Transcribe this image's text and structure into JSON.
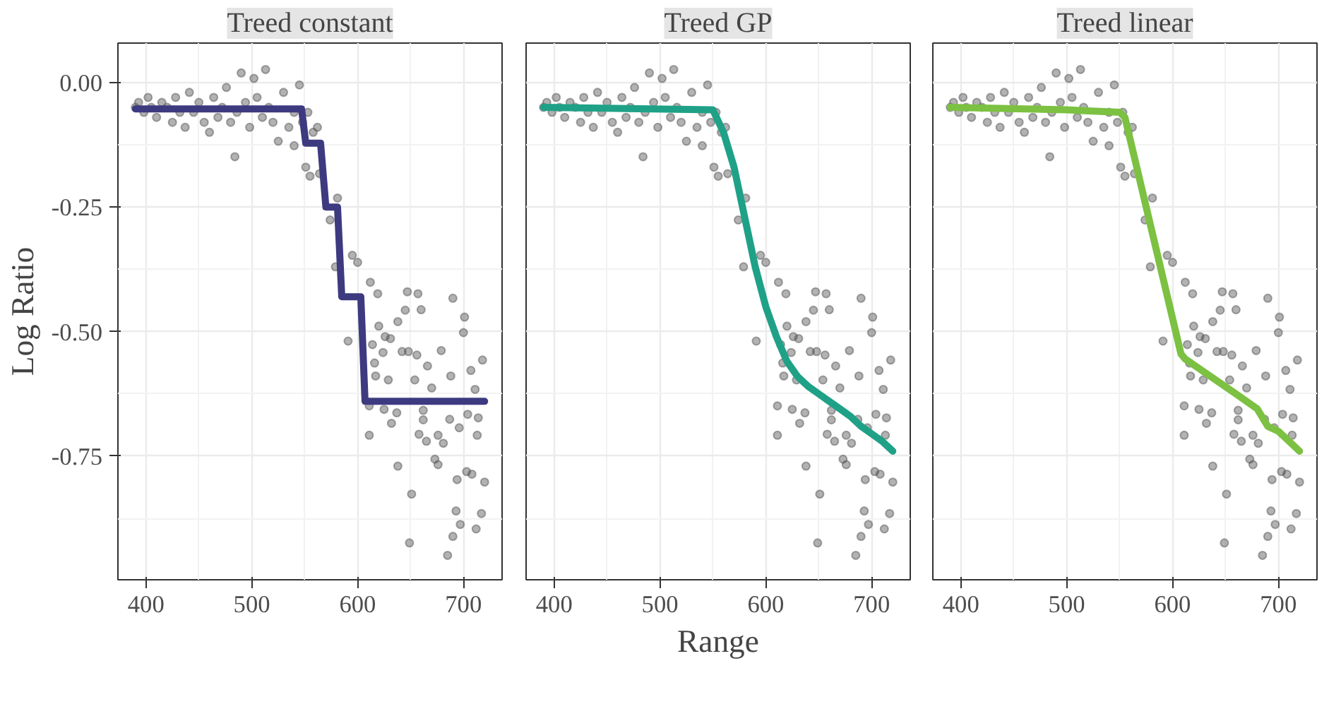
{
  "chart_data": [
    {
      "type": "scatter",
      "title": "Treed constant",
      "ylabel": "Log Ratio",
      "xlim": [
        373.5,
        736.5
      ],
      "ylim": [
        -0.998,
        0.079
      ],
      "xticks": [
        400,
        500,
        600,
        700
      ],
      "yticks": [
        {
          "value": 0,
          "label": "0.00"
        },
        {
          "value": -0.25,
          "label": "-0.25"
        },
        {
          "value": -0.5,
          "label": "-0.50"
        },
        {
          "value": -0.75,
          "label": "-0.75"
        }
      ],
      "grid": true,
      "marker": "circle",
      "series": [
        {
          "color": "#555555",
          "x": [
            390,
            393,
            398,
            402,
            405,
            410,
            415,
            420,
            425,
            428,
            432,
            437,
            441,
            445,
            450,
            455,
            460,
            464,
            468,
            472,
            476,
            480,
            484,
            486,
            490,
            494,
            498,
            502,
            505,
            510,
            513,
            516,
            520,
            525,
            530,
            535,
            540,
            540,
            545,
            548,
            551,
            553,
            555,
            558,
            562,
            564,
            574,
            579,
            581,
            591,
            595,
            600,
            611,
            611,
            612,
            614,
            616,
            617,
            619,
            620,
            624,
            625,
            626,
            629,
            631,
            632,
            637,
            638,
            638,
            642,
            645,
            647,
            648,
            649,
            651,
            654,
            656,
            657,
            658,
            660,
            662,
            662,
            665,
            666,
            670,
            673,
            676,
            676,
            679,
            681,
            685,
            687,
            688,
            690,
            690,
            693,
            694,
            696,
            697,
            700,
            701,
            703,
            704,
            707,
            708,
            711,
            712,
            713,
            714,
            717,
            718,
            720
          ],
          "values": [
            -0.05,
            -0.04,
            -0.06,
            -0.03,
            -0.05,
            -0.07,
            -0.04,
            -0.05,
            -0.08,
            -0.03,
            -0.06,
            -0.09,
            -0.02,
            -0.06,
            -0.04,
            -0.08,
            -0.1,
            -0.03,
            -0.07,
            -0.05,
            -0.01,
            -0.08,
            -0.149,
            -0.06,
            0.019,
            -0.04,
            -0.09,
            0.008,
            -0.03,
            -0.07,
            0.026,
            -0.05,
            -0.08,
            -0.118,
            -0.02,
            -0.09,
            -0.06,
            -0.127,
            -0.005,
            -0.08,
            -0.17,
            -0.06,
            -0.188,
            -0.1,
            -0.09,
            -0.183,
            -0.276,
            -0.37,
            -0.232,
            -0.519,
            -0.347,
            -0.361,
            -0.649,
            -0.708,
            -0.401,
            -0.526,
            -0.563,
            -0.589,
            -0.424,
            -0.489,
            -0.542,
            -0.656,
            -0.51,
            -0.597,
            -0.514,
            -0.684,
            -0.663,
            -0.48,
            -0.77,
            -0.54,
            -0.457,
            -0.42,
            -0.54,
            -0.924,
            -0.826,
            -0.597,
            -0.547,
            -0.424,
            -0.706,
            -0.456,
            -0.658,
            -0.677,
            -0.72,
            -0.569,
            -0.613,
            -0.756,
            -0.767,
            -0.708,
            -0.538,
            -0.724,
            -0.949,
            -0.676,
            -0.589,
            -0.433,
            -0.911,
            -0.86,
            -0.797,
            -0.693,
            -0.887,
            -0.502,
            -0.471,
            -0.781,
            -0.666,
            -0.578,
            -0.786,
            -0.616,
            -0.896,
            -0.708,
            -0.673,
            -0.865,
            -0.557,
            -0.802
          ]
        },
        {
          "type": "line",
          "marker": "none",
          "color": "#3d3a80",
          "x": [
            390,
            547,
            551,
            565,
            570,
            581,
            585,
            603,
            607,
            720
          ],
          "values": [
            -0.053,
            -0.053,
            -0.122,
            -0.122,
            -0.25,
            -0.25,
            -0.43,
            -0.43,
            -0.64,
            -0.64
          ]
        }
      ]
    },
    {
      "type": "scatter",
      "title": "Treed GP",
      "xlabel": "Range",
      "xlim": [
        373.5,
        736.5
      ],
      "ylim": [
        -0.998,
        0.079
      ],
      "xticks": [
        400,
        500,
        600,
        700
      ],
      "tick_labels": "x",
      "grid": true,
      "marker": "circle",
      "series": [
        {
          "color": "#555555",
          "x": [
            390,
            393,
            398,
            402,
            405,
            410,
            415,
            420,
            425,
            428,
            432,
            437,
            441,
            445,
            450,
            455,
            460,
            464,
            468,
            472,
            476,
            480,
            484,
            486,
            490,
            494,
            498,
            502,
            505,
            510,
            513,
            516,
            520,
            525,
            530,
            535,
            540,
            540,
            545,
            548,
            551,
            553,
            555,
            558,
            562,
            564,
            574,
            579,
            581,
            591,
            595,
            600,
            611,
            611,
            612,
            614,
            616,
            617,
            619,
            620,
            624,
            625,
            626,
            629,
            631,
            632,
            637,
            638,
            638,
            642,
            645,
            647,
            648,
            649,
            651,
            654,
            656,
            657,
            658,
            660,
            662,
            662,
            665,
            666,
            670,
            673,
            676,
            676,
            679,
            681,
            685,
            687,
            688,
            690,
            690,
            693,
            694,
            696,
            697,
            700,
            701,
            703,
            704,
            707,
            708,
            711,
            712,
            713,
            714,
            717,
            718,
            720
          ],
          "values": [
            -0.05,
            -0.04,
            -0.06,
            -0.03,
            -0.05,
            -0.07,
            -0.04,
            -0.05,
            -0.08,
            -0.03,
            -0.06,
            -0.09,
            -0.02,
            -0.06,
            -0.04,
            -0.08,
            -0.1,
            -0.03,
            -0.07,
            -0.05,
            -0.01,
            -0.08,
            -0.149,
            -0.06,
            0.019,
            -0.04,
            -0.09,
            0.008,
            -0.03,
            -0.07,
            0.026,
            -0.05,
            -0.08,
            -0.118,
            -0.02,
            -0.09,
            -0.06,
            -0.127,
            -0.005,
            -0.08,
            -0.17,
            -0.06,
            -0.188,
            -0.1,
            -0.09,
            -0.183,
            -0.276,
            -0.37,
            -0.232,
            -0.519,
            -0.347,
            -0.361,
            -0.649,
            -0.708,
            -0.401,
            -0.526,
            -0.563,
            -0.589,
            -0.424,
            -0.489,
            -0.542,
            -0.656,
            -0.51,
            -0.597,
            -0.514,
            -0.684,
            -0.663,
            -0.48,
            -0.77,
            -0.54,
            -0.457,
            -0.42,
            -0.54,
            -0.924,
            -0.826,
            -0.597,
            -0.547,
            -0.424,
            -0.706,
            -0.456,
            -0.658,
            -0.677,
            -0.72,
            -0.569,
            -0.613,
            -0.756,
            -0.767,
            -0.708,
            -0.538,
            -0.724,
            -0.949,
            -0.676,
            -0.589,
            -0.433,
            -0.911,
            -0.86,
            -0.797,
            -0.693,
            -0.887,
            -0.502,
            -0.471,
            -0.781,
            -0.666,
            -0.578,
            -0.786,
            -0.616,
            -0.896,
            -0.708,
            -0.673,
            -0.865,
            -0.557,
            -0.802
          ]
        },
        {
          "type": "line",
          "marker": "none",
          "color": "#1fa187",
          "x": [
            390,
            550,
            560,
            570,
            580,
            590,
            600,
            610,
            620,
            630,
            640,
            650,
            660,
            670,
            680,
            690,
            700,
            710,
            720
          ],
          "values": [
            -0.05,
            -0.055,
            -0.1,
            -0.17,
            -0.27,
            -0.37,
            -0.45,
            -0.51,
            -0.56,
            -0.59,
            -0.61,
            -0.625,
            -0.64,
            -0.655,
            -0.67,
            -0.69,
            -0.705,
            -0.72,
            -0.74
          ]
        }
      ]
    },
    {
      "type": "scatter",
      "title": "Treed linear",
      "xlim": [
        373.5,
        736.5
      ],
      "ylim": [
        -0.998,
        0.079
      ],
      "xticks": [
        400,
        500,
        600,
        700
      ],
      "tick_labels": "x",
      "grid": true,
      "marker": "circle",
      "series": [
        {
          "color": "#555555",
          "x": [
            390,
            393,
            398,
            402,
            405,
            410,
            415,
            420,
            425,
            428,
            432,
            437,
            441,
            445,
            450,
            455,
            460,
            464,
            468,
            472,
            476,
            480,
            484,
            486,
            490,
            494,
            498,
            502,
            505,
            510,
            513,
            516,
            520,
            525,
            530,
            535,
            540,
            540,
            545,
            548,
            551,
            553,
            555,
            558,
            562,
            564,
            574,
            579,
            581,
            591,
            595,
            600,
            611,
            611,
            612,
            614,
            616,
            617,
            619,
            620,
            624,
            625,
            626,
            629,
            631,
            632,
            637,
            638,
            638,
            642,
            645,
            647,
            648,
            649,
            651,
            654,
            656,
            657,
            658,
            660,
            662,
            662,
            665,
            666,
            670,
            673,
            676,
            676,
            679,
            681,
            685,
            687,
            688,
            690,
            690,
            693,
            694,
            696,
            697,
            700,
            701,
            703,
            704,
            707,
            708,
            711,
            712,
            713,
            714,
            717,
            718,
            720
          ],
          "values": [
            -0.05,
            -0.04,
            -0.06,
            -0.03,
            -0.05,
            -0.07,
            -0.04,
            -0.05,
            -0.08,
            -0.03,
            -0.06,
            -0.09,
            -0.02,
            -0.06,
            -0.04,
            -0.08,
            -0.1,
            -0.03,
            -0.07,
            -0.05,
            -0.01,
            -0.08,
            -0.149,
            -0.06,
            0.019,
            -0.04,
            -0.09,
            0.008,
            -0.03,
            -0.07,
            0.026,
            -0.05,
            -0.08,
            -0.118,
            -0.02,
            -0.09,
            -0.06,
            -0.127,
            -0.005,
            -0.08,
            -0.17,
            -0.06,
            -0.188,
            -0.1,
            -0.09,
            -0.183,
            -0.276,
            -0.37,
            -0.232,
            -0.519,
            -0.347,
            -0.361,
            -0.649,
            -0.708,
            -0.401,
            -0.526,
            -0.563,
            -0.589,
            -0.424,
            -0.489,
            -0.542,
            -0.656,
            -0.51,
            -0.597,
            -0.514,
            -0.684,
            -0.663,
            -0.48,
            -0.77,
            -0.54,
            -0.457,
            -0.42,
            -0.54,
            -0.924,
            -0.826,
            -0.597,
            -0.547,
            -0.424,
            -0.706,
            -0.456,
            -0.658,
            -0.677,
            -0.72,
            -0.569,
            -0.613,
            -0.756,
            -0.767,
            -0.708,
            -0.538,
            -0.724,
            -0.949,
            -0.676,
            -0.589,
            -0.433,
            -0.911,
            -0.86,
            -0.797,
            -0.693,
            -0.887,
            -0.502,
            -0.471,
            -0.781,
            -0.666,
            -0.578,
            -0.786,
            -0.616,
            -0.896,
            -0.708,
            -0.673,
            -0.865,
            -0.557,
            -0.802
          ]
        },
        {
          "type": "line",
          "marker": "none",
          "color": "#7cc142",
          "x": [
            390,
            500,
            550,
            555,
            608,
            612,
            660,
            670,
            680,
            690,
            700,
            720
          ],
          "values": [
            -0.05,
            -0.055,
            -0.06,
            -0.07,
            -0.545,
            -0.555,
            -0.625,
            -0.64,
            -0.655,
            -0.69,
            -0.7,
            -0.74
          ]
        }
      ]
    }
  ]
}
